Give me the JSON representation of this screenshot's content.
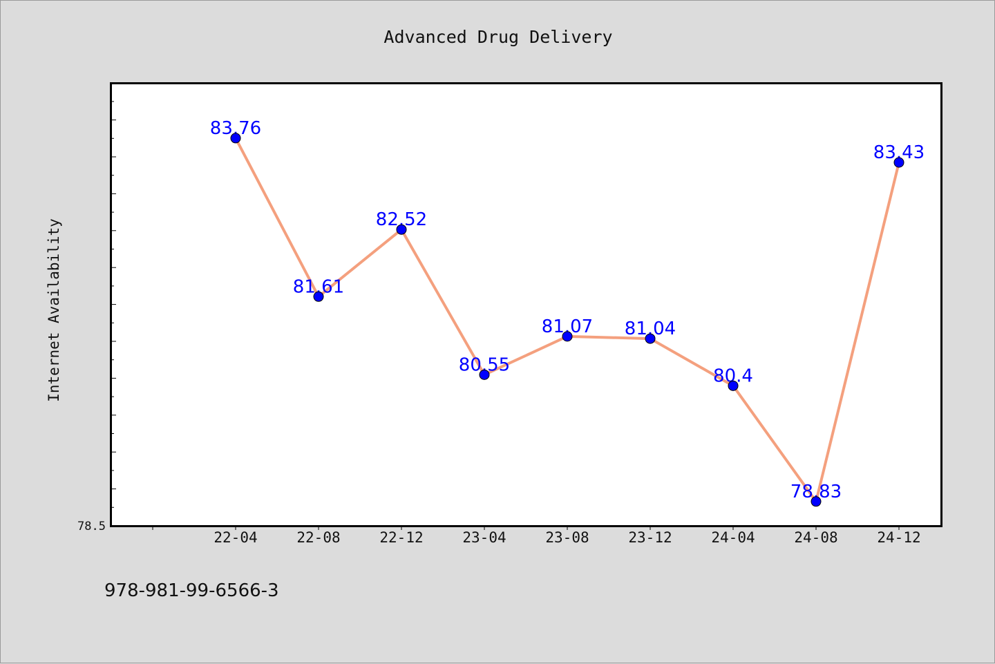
{
  "chart_data": {
    "type": "line",
    "title": "Advanced Drug Delivery",
    "xlabel": "",
    "ylabel": "Internet Availability",
    "categories": [
      "22-04",
      "22-08",
      "22-12",
      "23-04",
      "23-08",
      "23-12",
      "24-04",
      "24-08",
      "24-12"
    ],
    "series": [
      {
        "values": [
          83.76,
          81.61,
          82.52,
          80.55,
          81.07,
          81.04,
          80.4,
          78.83,
          83.43
        ]
      }
    ],
    "data_labels": [
      "83.76",
      "81.61",
      "82.52",
      "80.55",
      "81.07",
      "81.04",
      "80.4",
      "78.83",
      "83.43"
    ],
    "ylim": [
      78.5,
      84.5
    ],
    "y_tick_label": "78.5",
    "grid": false,
    "legend": "none",
    "colors": {
      "line": "#f4a07e",
      "marker": "#0000ff",
      "label": "#0000ff",
      "background": "#dcdcdc",
      "plot_background": "#ffffff"
    }
  },
  "footer": {
    "text": "978-981-99-6566-3"
  }
}
